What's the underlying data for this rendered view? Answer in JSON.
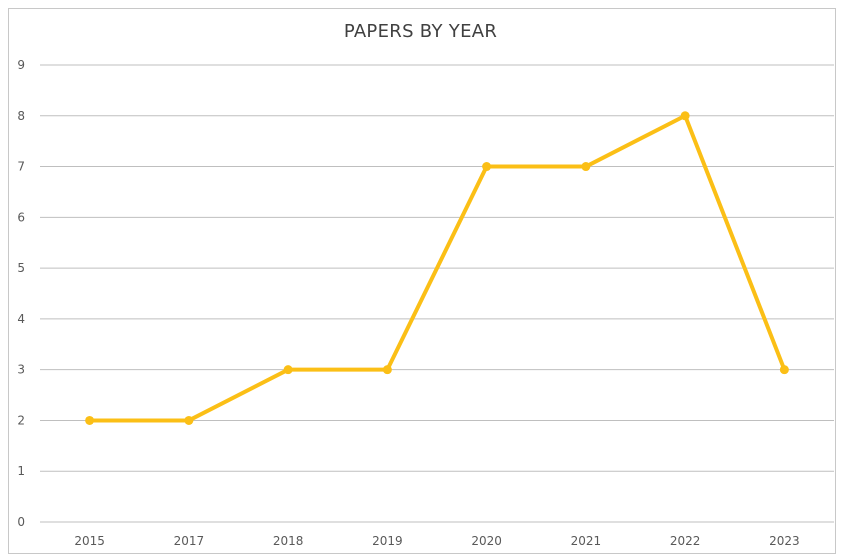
{
  "chart_data": {
    "type": "line",
    "title": "PAPERS BY YEAR",
    "xlabel": "",
    "ylabel": "",
    "categories": [
      "2015",
      "2017",
      "2018",
      "2019",
      "2020",
      "2021",
      "2022",
      "2023"
    ],
    "series": [
      {
        "values": [
          2,
          2,
          3,
          3,
          7,
          7,
          8,
          3
        ],
        "color": "#FBBF16"
      }
    ],
    "ylim": [
      0,
      9
    ],
    "yticks": [
      0,
      1,
      2,
      3,
      4,
      5,
      6,
      7,
      8,
      9
    ],
    "grid": true,
    "legend": "none",
    "gridline_color": "#bfbfbf"
  }
}
